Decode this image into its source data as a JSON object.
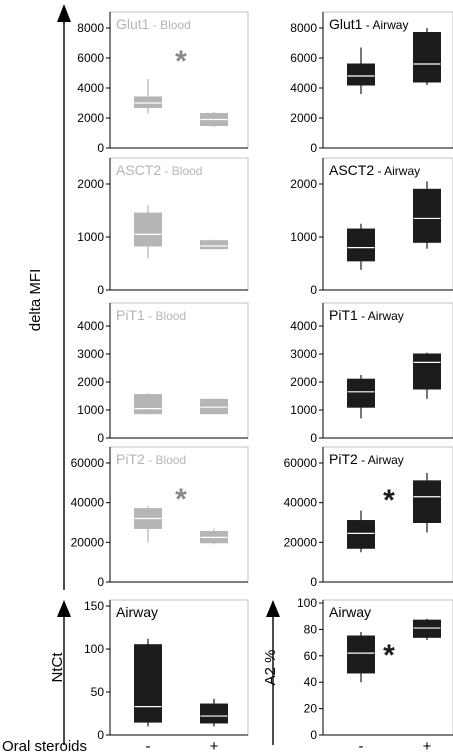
{
  "figure": {
    "y_axis_title": "delta MFI",
    "x_axis_title": "Oral steroids",
    "x_categories": [
      "-",
      "+"
    ],
    "colors": {
      "blood": "#b5b5b5",
      "airway": "#1c1c1c",
      "axis": "#000000",
      "frame": "#c0c0c0",
      "star_blood": "#8a8a8a",
      "star_airway": "#1c1c1c"
    }
  },
  "chart_data": [
    {
      "type": "box",
      "title": "Glut1",
      "subtitle": "- Blood",
      "group": "blood",
      "ylim": [
        0,
        8000
      ],
      "yticks": [
        0,
        2000,
        4000,
        6000,
        8000
      ],
      "significance": "*",
      "categories": [
        "-",
        "+"
      ],
      "boxes": [
        {
          "min": 2300,
          "q1": 2700,
          "median": 3000,
          "q3": 3400,
          "max": 4600
        },
        {
          "min": 1400,
          "q1": 1500,
          "median": 1900,
          "q3": 2300,
          "max": 2400
        }
      ]
    },
    {
      "type": "box",
      "title": "Glut1",
      "subtitle": "- Airway",
      "group": "airway",
      "ylim": [
        0,
        8000
      ],
      "yticks": [
        0,
        2000,
        4000,
        6000,
        8000
      ],
      "categories": [
        "-",
        "+"
      ],
      "boxes": [
        {
          "min": 3600,
          "q1": 4200,
          "median": 4800,
          "q3": 5600,
          "max": 6700
        },
        {
          "min": 4200,
          "q1": 4400,
          "median": 5600,
          "q3": 7700,
          "max": 8000
        }
      ]
    },
    {
      "type": "box",
      "title": "ASCT2",
      "subtitle": "- Blood",
      "group": "blood",
      "ylim": [
        0,
        2000
      ],
      "yticks": [
        0,
        1000,
        2000
      ],
      "categories": [
        "-",
        "+"
      ],
      "boxes": [
        {
          "min": 600,
          "q1": 830,
          "median": 1050,
          "q3": 1450,
          "max": 1600
        },
        {
          "min": 770,
          "q1": 780,
          "median": 830,
          "q3": 930,
          "max": 950
        }
      ]
    },
    {
      "type": "box",
      "title": "ASCT2",
      "subtitle": "- Airway",
      "group": "airway",
      "ylim": [
        0,
        2000
      ],
      "yticks": [
        0,
        1000,
        2000
      ],
      "categories": [
        "-",
        "+"
      ],
      "boxes": [
        {
          "min": 380,
          "q1": 550,
          "median": 800,
          "q3": 1150,
          "max": 1250
        },
        {
          "min": 780,
          "q1": 900,
          "median": 1350,
          "q3": 1900,
          "max": 2050
        }
      ]
    },
    {
      "type": "box",
      "title": "PiT1",
      "subtitle": "- Blood",
      "group": "blood",
      "ylim": [
        0,
        4000
      ],
      "yticks": [
        0,
        1000,
        2000,
        3000,
        4000
      ],
      "categories": [
        "-",
        "+"
      ],
      "boxes": [
        {
          "min": 850,
          "q1": 870,
          "median": 1050,
          "q3": 1550,
          "max": 1600
        },
        {
          "min": 850,
          "q1": 870,
          "median": 1100,
          "q3": 1380,
          "max": 1400
        }
      ]
    },
    {
      "type": "box",
      "title": "PiT1",
      "subtitle": "- Airway",
      "group": "airway",
      "ylim": [
        0,
        4000
      ],
      "yticks": [
        0,
        1000,
        2000,
        3000,
        4000
      ],
      "categories": [
        "-",
        "+"
      ],
      "boxes": [
        {
          "min": 700,
          "q1": 1100,
          "median": 1650,
          "q3": 2100,
          "max": 2250
        },
        {
          "min": 1400,
          "q1": 1750,
          "median": 2700,
          "q3": 3000,
          "max": 3050
        }
      ]
    },
    {
      "type": "box",
      "title": "PiT2",
      "subtitle": "- Blood",
      "group": "blood",
      "ylim": [
        0,
        60000
      ],
      "yticks": [
        0,
        20000,
        40000,
        60000
      ],
      "significance": "*",
      "categories": [
        "-",
        "+"
      ],
      "boxes": [
        {
          "min": 20000,
          "q1": 27000,
          "median": 32000,
          "q3": 37000,
          "max": 38500
        },
        {
          "min": 19000,
          "q1": 19800,
          "median": 22500,
          "q3": 25500,
          "max": 27000
        }
      ]
    },
    {
      "type": "box",
      "title": "PiT2",
      "subtitle": "- Airway",
      "group": "airway",
      "ylim": [
        0,
        60000
      ],
      "yticks": [
        0,
        20000,
        40000,
        60000
      ],
      "significance": "*",
      "categories": [
        "-",
        "+"
      ],
      "boxes": [
        {
          "min": 15000,
          "q1": 17000,
          "median": 24500,
          "q3": 31000,
          "max": 36000
        },
        {
          "min": 25000,
          "q1": 30000,
          "median": 43000,
          "q3": 51000,
          "max": 55000
        }
      ]
    },
    {
      "type": "box",
      "title": "Airway",
      "subtitle": "",
      "group": "airway",
      "ylabel": "NtCt",
      "ylim": [
        0,
        150
      ],
      "yticks": [
        0,
        50,
        100,
        150
      ],
      "categories": [
        "-",
        "+"
      ],
      "boxes": [
        {
          "min": 10,
          "q1": 15,
          "median": 33,
          "q3": 105,
          "max": 112
        },
        {
          "min": 10,
          "q1": 14,
          "median": 22,
          "q3": 36,
          "max": 42
        }
      ]
    },
    {
      "type": "box",
      "title": "Airway",
      "subtitle": "",
      "group": "airway",
      "ylabel": "A2 %",
      "ylim": [
        0,
        100
      ],
      "yticks": [
        0,
        20,
        40,
        60,
        80,
        100
      ],
      "significance": "*",
      "categories": [
        "-",
        "+"
      ],
      "boxes": [
        {
          "min": 40,
          "q1": 47,
          "median": 62,
          "q3": 75,
          "max": 78
        },
        {
          "min": 72,
          "q1": 74,
          "median": 81,
          "q3": 87,
          "max": 88
        }
      ]
    }
  ]
}
